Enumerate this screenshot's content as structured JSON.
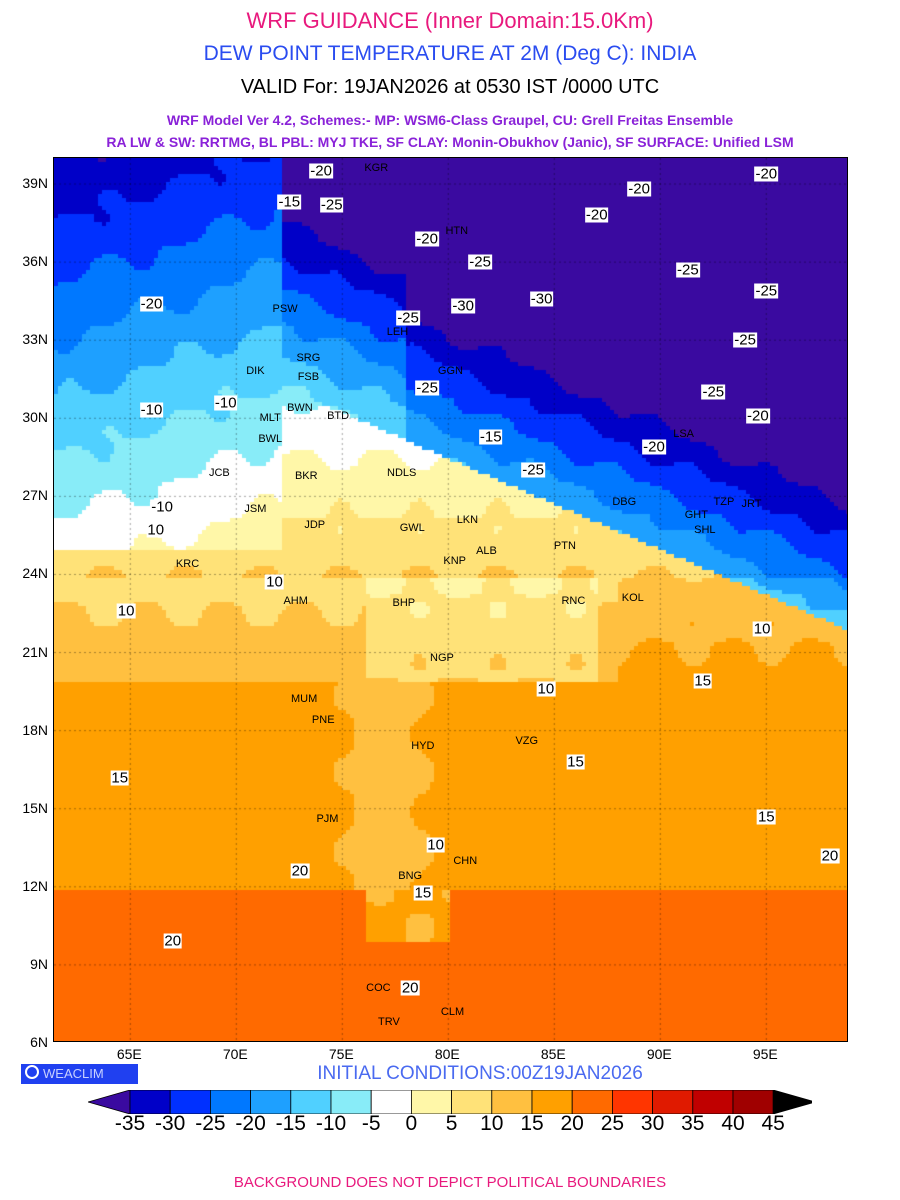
{
  "header": {
    "title": "WRF GUIDANCE (Inner Domain:15.0Km)",
    "subtitle": "DEW POINT TEMPERATURE AT 2M (Deg C): INDIA",
    "valid": "VALID For: 19JAN2026 at 0530 IST /0000 UTC",
    "model_line1": "WRF Model Ver 4.2, Schemes:- MP: WSM6-Class Graupel, CU: Grell Freitas Ensemble",
    "model_line2": "RA LW & SW: RRTMG, BL PBL: MYJ TKE, SF CLAY: Monin-Obukhov (Janic), SF SURFACE: Unified LSM"
  },
  "map": {
    "lon_range": [
      61.4,
      98.9
    ],
    "lat_range": [
      6,
      40
    ],
    "lat_ticks": [
      {
        "v": 39,
        "l": "39N"
      },
      {
        "v": 36,
        "l": "36N"
      },
      {
        "v": 33,
        "l": "33N"
      },
      {
        "v": 30,
        "l": "30N"
      },
      {
        "v": 27,
        "l": "27N"
      },
      {
        "v": 24,
        "l": "24N"
      },
      {
        "v": 21,
        "l": "21N"
      },
      {
        "v": 18,
        "l": "18N"
      },
      {
        "v": 15,
        "l": "15N"
      },
      {
        "v": 12,
        "l": "12N"
      },
      {
        "v": 9,
        "l": "9N"
      },
      {
        "v": 6,
        "l": "6N"
      }
    ],
    "lon_ticks": [
      {
        "v": 65,
        "l": "65E"
      },
      {
        "v": 70,
        "l": "70E"
      },
      {
        "v": 75,
        "l": "75E"
      },
      {
        "v": 80,
        "l": "80E"
      },
      {
        "v": 85,
        "l": "85E"
      },
      {
        "v": 90,
        "l": "90E"
      },
      {
        "v": 95,
        "l": "95E"
      }
    ],
    "cities": [
      {
        "n": "KGR",
        "lon": 76.6,
        "lat": 39.6
      },
      {
        "n": "HTN",
        "lon": 80.4,
        "lat": 37.2
      },
      {
        "n": "PSW",
        "lon": 72.3,
        "lat": 34.2
      },
      {
        "n": "LEH",
        "lon": 77.6,
        "lat": 33.3
      },
      {
        "n": "SRG",
        "lon": 73.4,
        "lat": 32.3
      },
      {
        "n": "FSB",
        "lon": 73.4,
        "lat": 31.6
      },
      {
        "n": "DIK",
        "lon": 70.9,
        "lat": 31.8
      },
      {
        "n": "MLT",
        "lon": 71.6,
        "lat": 30.0
      },
      {
        "n": "BWN",
        "lon": 73.0,
        "lat": 30.4
      },
      {
        "n": "BWL",
        "lon": 71.6,
        "lat": 29.2
      },
      {
        "n": "BTD",
        "lon": 74.8,
        "lat": 30.1
      },
      {
        "n": "NDLS",
        "lon": 77.8,
        "lat": 27.9
      },
      {
        "n": "JCB",
        "lon": 69.2,
        "lat": 27.9
      },
      {
        "n": "BKR",
        "lon": 73.3,
        "lat": 27.8
      },
      {
        "n": "JSM",
        "lon": 70.9,
        "lat": 26.5
      },
      {
        "n": "JDP",
        "lon": 73.7,
        "lat": 25.9
      },
      {
        "n": "GWL",
        "lon": 78.3,
        "lat": 25.8
      },
      {
        "n": "LKN",
        "lon": 80.9,
        "lat": 26.1
      },
      {
        "n": "ALB",
        "lon": 81.8,
        "lat": 24.9
      },
      {
        "n": "KNP",
        "lon": 80.3,
        "lat": 24.5
      },
      {
        "n": "PTN",
        "lon": 85.5,
        "lat": 25.1
      },
      {
        "n": "RNC",
        "lon": 85.9,
        "lat": 23.0
      },
      {
        "n": "BHP",
        "lon": 77.9,
        "lat": 22.9
      },
      {
        "n": "NGP",
        "lon": 79.7,
        "lat": 20.8
      },
      {
        "n": "KOL",
        "lon": 88.7,
        "lat": 23.1
      },
      {
        "n": "AHM",
        "lon": 72.8,
        "lat": 23.0
      },
      {
        "n": "KRC",
        "lon": 67.7,
        "lat": 24.4
      },
      {
        "n": "MUM",
        "lon": 73.2,
        "lat": 19.2
      },
      {
        "n": "PNE",
        "lon": 74.1,
        "lat": 18.4
      },
      {
        "n": "HYD",
        "lon": 78.8,
        "lat": 17.4
      },
      {
        "n": "VZG",
        "lon": 83.7,
        "lat": 17.6
      },
      {
        "n": "PJM",
        "lon": 74.3,
        "lat": 14.6
      },
      {
        "n": "CHN",
        "lon": 80.8,
        "lat": 13.0
      },
      {
        "n": "BNG",
        "lon": 78.2,
        "lat": 12.4
      },
      {
        "n": "COC",
        "lon": 76.7,
        "lat": 8.1
      },
      {
        "n": "TRV",
        "lon": 77.2,
        "lat": 6.8
      },
      {
        "n": "CLM",
        "lon": 80.2,
        "lat": 7.2
      },
      {
        "n": "GHT",
        "lon": 91.7,
        "lat": 26.3
      },
      {
        "n": "SHL",
        "lon": 92.1,
        "lat": 25.7
      },
      {
        "n": "DBG",
        "lon": 88.3,
        "lat": 26.8
      },
      {
        "n": "TZP",
        "lon": 93.0,
        "lat": 26.8
      },
      {
        "n": "JRT",
        "lon": 94.3,
        "lat": 26.7
      },
      {
        "n": "LSA",
        "lon": 91.1,
        "lat": 29.4
      },
      {
        "n": "GGN",
        "lon": 80.1,
        "lat": 31.8
      }
    ],
    "contour_labels": [
      {
        "v": "-20",
        "lon": 74.0,
        "lat": 39.5
      },
      {
        "v": "-25",
        "lon": 74.5,
        "lat": 38.2
      },
      {
        "v": "-15",
        "lon": 72.5,
        "lat": 38.3
      },
      {
        "v": "-20",
        "lon": 79.0,
        "lat": 36.9
      },
      {
        "v": "-25",
        "lon": 81.5,
        "lat": 36.0
      },
      {
        "v": "-30",
        "lon": 80.7,
        "lat": 34.3
      },
      {
        "v": "-30",
        "lon": 84.4,
        "lat": 34.6
      },
      {
        "v": "-25",
        "lon": 78.1,
        "lat": 33.4
      },
      {
        "v": "-25",
        "lon": 79.0,
        "lat": 31.3
      },
      {
        "v": "-20",
        "lon": 87.0,
        "lat": 37.8
      },
      {
        "v": "-20",
        "lon": 89.0,
        "lat": 38.8
      },
      {
        "v": "-20",
        "lon": 95.0,
        "lat": 39.4
      },
      {
        "v": "-25",
        "lon": 91.3,
        "lat": 35.7
      },
      {
        "v": "-25",
        "lon": 95.0,
        "lat": 34.9
      },
      {
        "v": "-25",
        "lon": 94.0,
        "lat": 33.0
      },
      {
        "v": "-25",
        "lon": 92.5,
        "lat": 31.0
      },
      {
        "v": "-20",
        "lon": 89.7,
        "lat": 28.9
      },
      {
        "v": "-20",
        "lon": 94.6,
        "lat": 30.1
      },
      {
        "v": "-10",
        "lon": 66.0,
        "lat": 30.3
      },
      {
        "v": "-20",
        "lon": 66.0,
        "lat": 34.4
      },
      {
        "v": "-10",
        "lon": 69.5,
        "lat": 30.6
      },
      {
        "v": "-10",
        "lon": 66.5,
        "lat": 26.6
      },
      {
        "v": "-15",
        "lon": 82.0,
        "lat": 29.3
      },
      {
        "v": "-25",
        "lon": 84.0,
        "lat": 28.0
      },
      {
        "v": "10",
        "lon": 66.2,
        "lat": 25.7
      },
      {
        "v": "10",
        "lon": 64.8,
        "lat": 22.6
      },
      {
        "v": "10",
        "lon": 71.8,
        "lat": 23.4
      },
      {
        "v": "15",
        "lon": 64.5,
        "lat": 16.2
      },
      {
        "v": "20",
        "lon": 67.0,
        "lat": 9.9
      },
      {
        "v": "20",
        "lon": 73.0,
        "lat": 12.6
      },
      {
        "v": "15",
        "lon": 86.0,
        "lat": 16.8
      },
      {
        "v": "15",
        "lon": 95.0,
        "lat": 14.7
      },
      {
        "v": "20",
        "lon": 98.0,
        "lat": 13.2
      },
      {
        "v": "10",
        "lon": 84.6,
        "lat": 19.6
      },
      {
        "v": "15",
        "lon": 92.0,
        "lat": 19.9
      },
      {
        "v": "10",
        "lon": 94.8,
        "lat": 21.9
      },
      {
        "v": "20",
        "lon": 78.2,
        "lat": 8.1
      },
      {
        "v": "15",
        "lon": 78.8,
        "lat": 11.9
      },
      {
        "v": "10",
        "lon": 79.4,
        "lat": 13.6
      }
    ]
  },
  "bottom": {
    "logo": "WEACLIM",
    "initial": "INITIAL CONDITIONS:00Z19JAN2026",
    "footer": "BACKGROUND DOES NOT DEPICT POLITICAL BOUNDARIES"
  },
  "colorbar": {
    "labels": [
      "-35",
      "-30",
      "-25",
      "-20",
      "-15",
      "-10",
      "-5",
      "0",
      "5",
      "10",
      "15",
      "20",
      "25",
      "30",
      "35",
      "40",
      "45"
    ],
    "colors": [
      "#3a0aa0",
      "#0000c8",
      "#0030ff",
      "#0078ff",
      "#1ea0ff",
      "#50d0ff",
      "#88ecf8",
      "#ffffff",
      "#fff7a8",
      "#ffe278",
      "#ffc040",
      "#ffa000",
      "#ff6a00",
      "#ff3500",
      "#e01a00",
      "#c00000",
      "#a00000",
      "#000000"
    ]
  }
}
